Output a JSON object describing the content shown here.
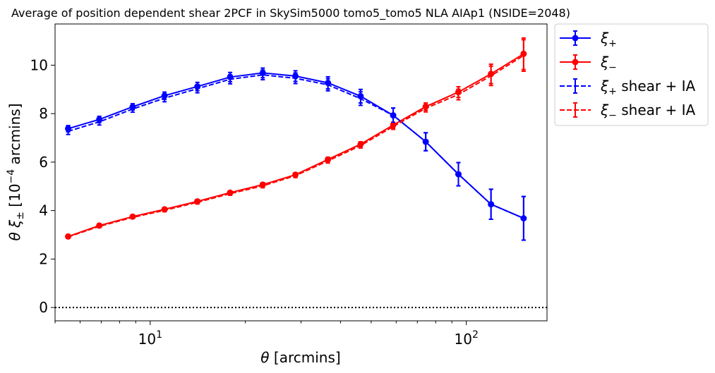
{
  "chart_data": {
    "type": "line",
    "title": "Average of position dependent shear 2PCF in SkySim5000 tomo5_tomo5 NLA AIAp1 (NSIDE=2048)",
    "xlabel": "θ [arcmins]",
    "ylabel": "θ ξ± [10⁻⁴ arcmins]",
    "xscale": "log",
    "xlim": [
      5.0,
      180.0
    ],
    "ylim": [
      -0.55,
      11.7
    ],
    "xticks": [
      {
        "value": 10,
        "base": "10",
        "exp": "1"
      },
      {
        "value": 100,
        "base": "10",
        "exp": "2"
      }
    ],
    "yticks": [
      0,
      2,
      4,
      6,
      8,
      10
    ],
    "hline": {
      "y": 0,
      "style": "dotted",
      "color": "#000000"
    },
    "grid": false,
    "legend_position": "outside-top-right",
    "x": [
      5.5,
      6.9,
      8.8,
      11.1,
      14.1,
      17.9,
      22.7,
      28.8,
      36.5,
      46.3,
      58.7,
      74.4,
      94.4,
      119.7,
      151.8
    ],
    "series": [
      {
        "name": "ξ+",
        "legend": {
          "sym": "ξ",
          "sub": "+",
          "rest": ""
        },
        "color": "#0000ff",
        "dash": "solid",
        "markers": true,
        "values": [
          7.38,
          7.76,
          8.28,
          8.74,
          9.12,
          9.51,
          9.68,
          9.55,
          9.27,
          8.72,
          7.93,
          6.84,
          5.5,
          4.26,
          3.68
        ],
        "errors": [
          0.13,
          0.13,
          0.13,
          0.15,
          0.17,
          0.19,
          0.2,
          0.22,
          0.25,
          0.28,
          0.3,
          0.37,
          0.48,
          0.62,
          0.9
        ]
      },
      {
        "name": "ξ−",
        "legend": {
          "sym": "ξ",
          "sub": "−",
          "rest": ""
        },
        "color": "#ff0000",
        "dash": "solid",
        "markers": true,
        "values": [
          2.93,
          3.38,
          3.75,
          4.05,
          4.38,
          4.74,
          5.07,
          5.48,
          6.11,
          6.74,
          7.53,
          8.29,
          8.89,
          9.64,
          10.47
        ],
        "errors": [
          0.05,
          0.05,
          0.05,
          0.06,
          0.07,
          0.07,
          0.08,
          0.08,
          0.09,
          0.1,
          0.12,
          0.15,
          0.22,
          0.4,
          0.65
        ]
      },
      {
        "name": "ξ+ shear + IA",
        "legend": {
          "sym": "ξ",
          "sub": "+",
          "rest": " shear + IA"
        },
        "color": "#0000ff",
        "dash": "dashed",
        "markers": false,
        "values": [
          7.27,
          7.66,
          8.19,
          8.64,
          9.03,
          9.42,
          9.6,
          9.46,
          9.19,
          8.62,
          7.93,
          6.84,
          5.5,
          4.26,
          3.68
        ],
        "errors": [
          0.13,
          0.13,
          0.13,
          0.15,
          0.17,
          0.19,
          0.2,
          0.22,
          0.25,
          0.28,
          0.3,
          0.37,
          0.48,
          0.62,
          0.9
        ]
      },
      {
        "name": "ξ− shear + IA",
        "legend": {
          "sym": "ξ",
          "sub": "−",
          "rest": " shear + IA"
        },
        "color": "#ff0000",
        "dash": "dashed",
        "markers": false,
        "values": [
          2.91,
          3.35,
          3.72,
          4.01,
          4.34,
          4.7,
          5.02,
          5.44,
          6.05,
          6.68,
          7.47,
          8.22,
          8.79,
          9.56,
          10.4
        ],
        "errors": [
          0.05,
          0.05,
          0.05,
          0.06,
          0.07,
          0.07,
          0.08,
          0.08,
          0.09,
          0.1,
          0.12,
          0.15,
          0.22,
          0.4,
          0.65
        ]
      }
    ]
  }
}
